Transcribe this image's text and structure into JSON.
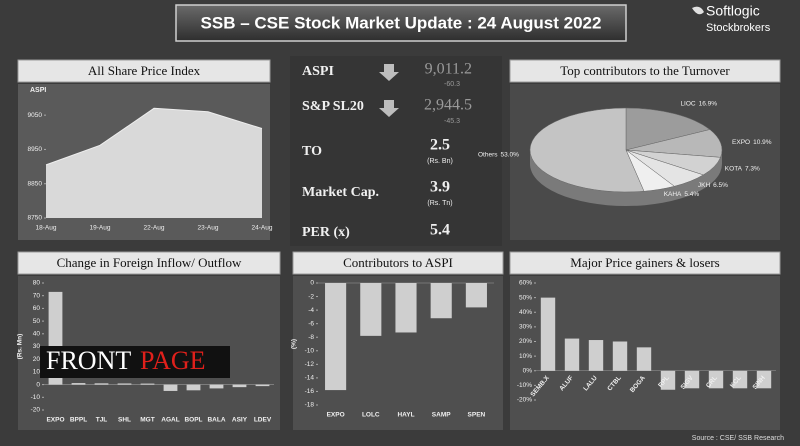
{
  "header": {
    "title": "SSB – CSE Stock Market Update : 24 August 2022",
    "logo": [
      "Softlogic",
      "Stockbrokers"
    ]
  },
  "stats": {
    "rows": [
      {
        "label": "ASPI",
        "value": "9,011.2",
        "sub": "-60.3"
      },
      {
        "label": "S&P SL20",
        "value": "2,944.5",
        "sub": "-45.3"
      },
      {
        "label": "TO",
        "value": "2.5",
        "sub": "(Rs. Bn)"
      },
      {
        "label": "Market Cap.",
        "value": "3.9",
        "sub": "(Rs. Tn)"
      },
      {
        "label": "PER (x)",
        "value": "5.4"
      }
    ]
  },
  "watermark": {
    "first": "FRONT",
    "second": "PAGE"
  },
  "source": "Source : CSE/ SSB Research",
  "chart_data": [
    {
      "type": "area",
      "title": "All Share Price Index",
      "y_label": "ASPI",
      "color": "#d9d9d9",
      "categories": [
        "18-Aug",
        "19-Aug",
        "22-Aug",
        "23-Aug",
        "24-Aug"
      ],
      "values": [
        8905,
        8962,
        9070,
        9060,
        9011
      ],
      "ylim": [
        8750,
        9100
      ],
      "yticks": [
        8750,
        8850,
        8950,
        9050
      ]
    },
    {
      "type": "pie",
      "title": "Top contributors to the Turnover",
      "categories": [
        "LIOC",
        "EXPO",
        "KOTA",
        "JKH",
        "KAHA",
        "Others"
      ],
      "values": [
        16.9,
        10.9,
        7.3,
        6.5,
        5.4,
        53.0
      ],
      "value_labels": [
        "16.9%",
        "10.9%",
        "7.3%",
        "6.5%",
        "5.4%",
        "53.0%"
      ],
      "colors": [
        "#9c9c9c",
        "#b8b8b8",
        "#d2d2d2",
        "#e4e4e4",
        "#efefef",
        "#c4c4c4"
      ]
    },
    {
      "type": "bar",
      "title": "Change in Foreign Inflow/ Outflow",
      "y_label": "(Rs. Mn)",
      "color": "#cfcfcf",
      "categories": [
        "EXPO",
        "BPPL",
        "TJL",
        "SHL",
        "MGT",
        "AGAL",
        "BOPL",
        "BALA",
        "ASIY",
        "LDEV"
      ],
      "values": [
        73,
        1.2,
        1.0,
        0.9,
        0.8,
        -5,
        -4.5,
        -3,
        -2,
        -1.2
      ],
      "ylim": [
        -20,
        80
      ],
      "yticks": [
        -20,
        -10,
        0,
        10,
        20,
        30,
        40,
        50,
        60,
        70,
        80
      ]
    },
    {
      "type": "bar",
      "title": "Contributors to ASPI",
      "y_label": "(%)",
      "color": "#cfcfcf",
      "categories": [
        "EXPO",
        "LOLC",
        "HAYL",
        "SAMP",
        "SPEN"
      ],
      "values": [
        -15.8,
        -7.8,
        -7.3,
        -5.2,
        -3.6
      ],
      "ylim": [
        -18,
        0
      ],
      "yticks": [
        -18,
        -16,
        -14,
        -12,
        -10,
        -8,
        -6,
        -4,
        -2,
        0
      ]
    },
    {
      "type": "bar",
      "title": "Major Price gainers & losers",
      "color": "#cfcfcf",
      "categories": [
        "SEMB.X",
        "ALUF",
        "LALU",
        "CTBL",
        "BOGA",
        "RPL",
        "SIGV",
        "CRL",
        "KCL",
        "SINH"
      ],
      "values": [
        50,
        22,
        21,
        20,
        16,
        -13,
        -12,
        -12,
        -12,
        -12
      ],
      "ylim": [
        -20,
        60
      ],
      "yticks": [
        {
          "value": -20,
          "label": "-20%"
        },
        {
          "value": -10,
          "label": "-10%"
        },
        {
          "value": 0,
          "label": "0%"
        },
        {
          "value": 10,
          "label": "10%"
        },
        {
          "value": 20,
          "label": "20%"
        },
        {
          "value": 30,
          "label": "30%"
        },
        {
          "value": 40,
          "label": "40%"
        },
        {
          "value": 50,
          "label": "50%"
        },
        {
          "value": 60,
          "label": "60%"
        }
      ]
    }
  ]
}
